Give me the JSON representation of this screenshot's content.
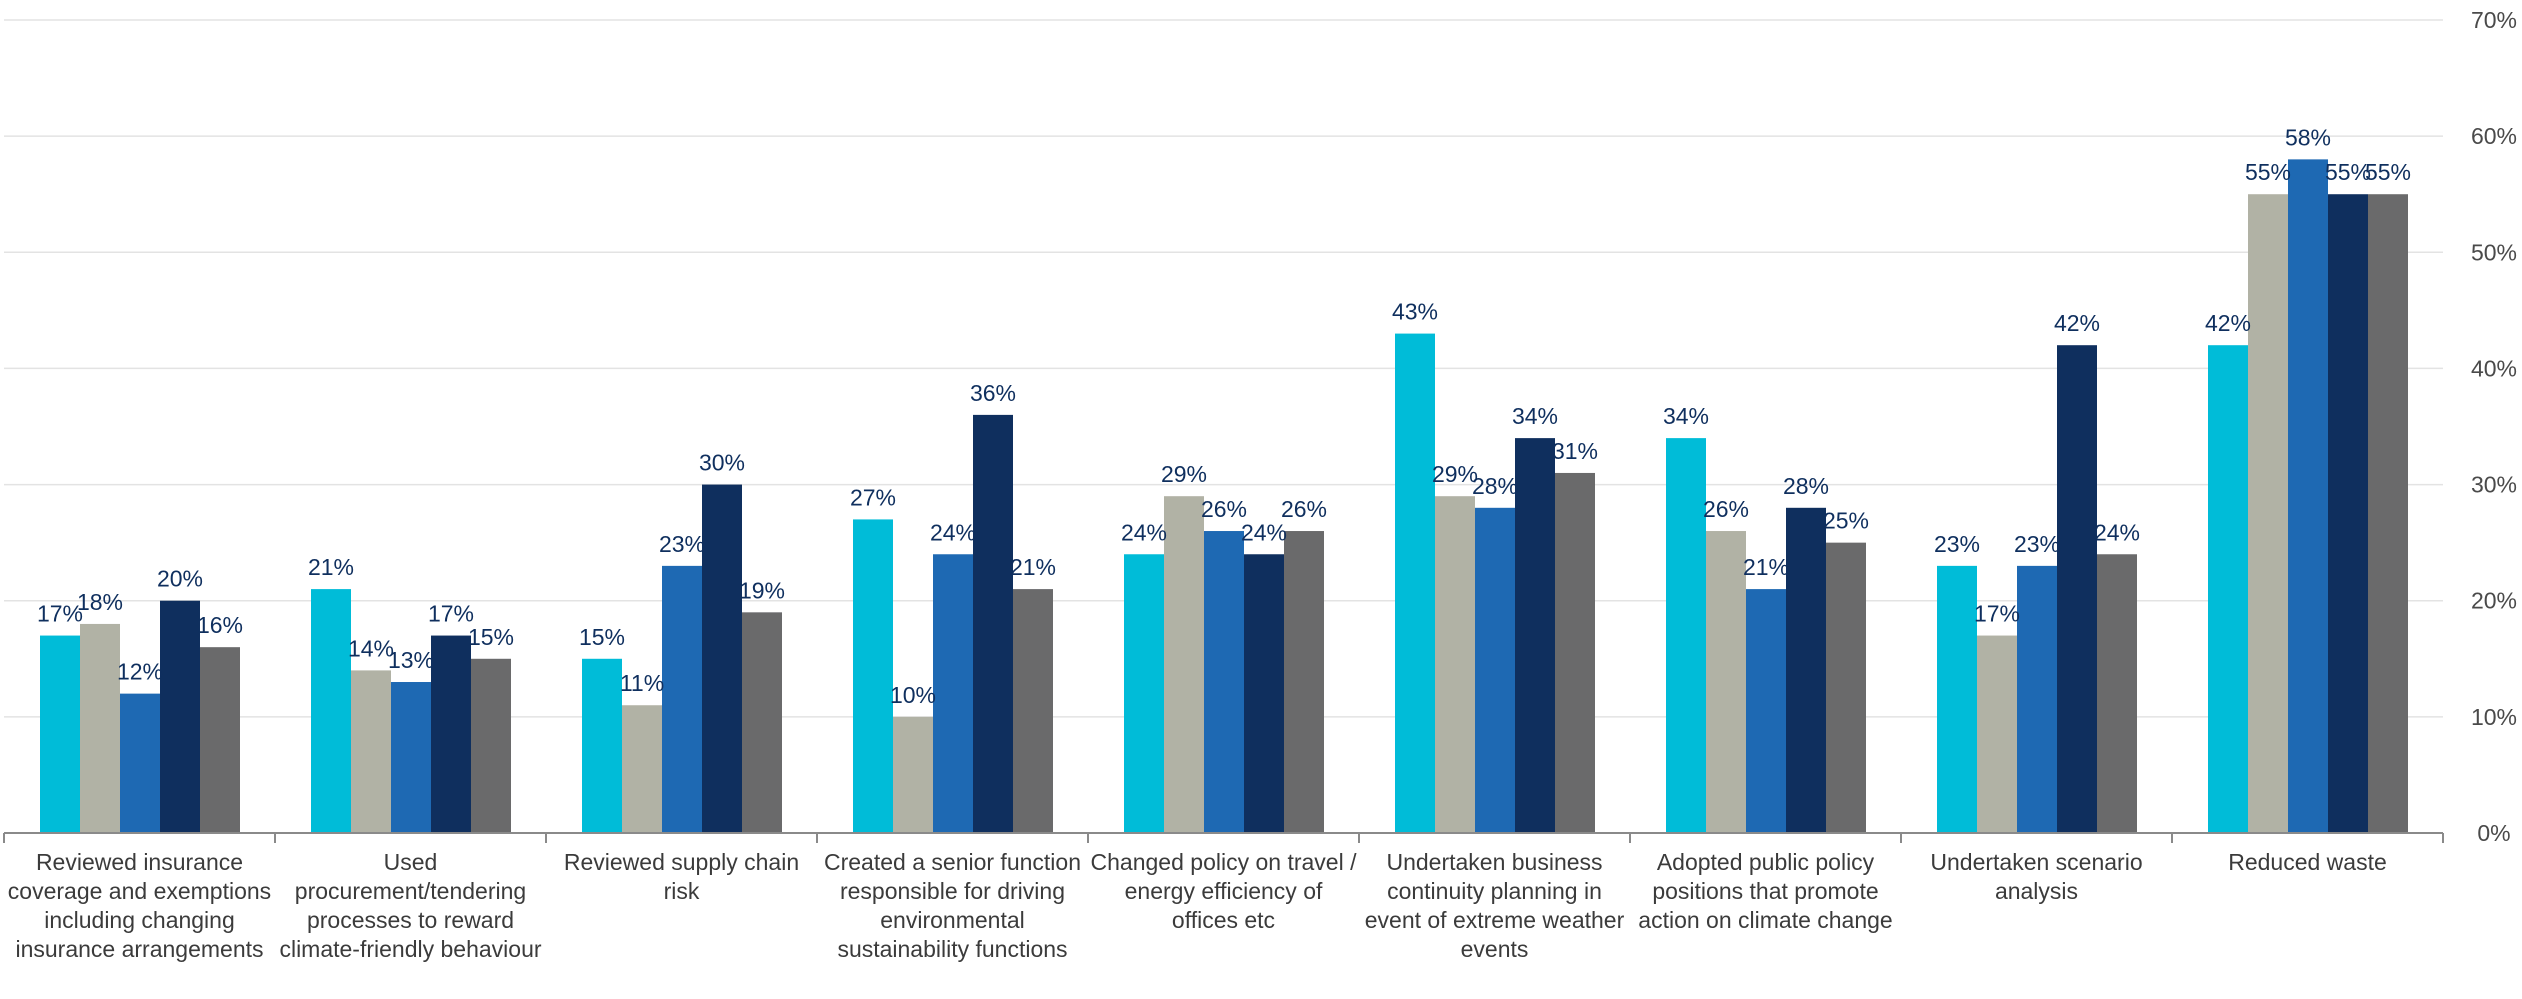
{
  "chart_data": {
    "type": "bar",
    "title": "",
    "xlabel": "",
    "ylabel": "",
    "ylim": [
      0,
      70
    ],
    "yticks": [
      0,
      10,
      20,
      30,
      40,
      50,
      60,
      70
    ],
    "ytick_labels": [
      "0%",
      "10%",
      "20%",
      "30%",
      "40%",
      "50%",
      "60%",
      "70%"
    ],
    "grid": true,
    "legend": "none",
    "categories": [
      "Reviewed insurance coverage and exemptions including changing insurance arrangements",
      "Used procurement/tendering processes to reward climate-friendly behaviour",
      "Reviewed supply chain risk",
      "Created a senior function responsible for driving environmental sustainability functions",
      "Changed policy on travel / energy efficiency of offices etc",
      "Undertaken business continuity planning in event of extreme weather events",
      "Adopted public policy positions that promote action on climate change",
      "Undertaken scenario analysis",
      "Reduced waste"
    ],
    "series": [
      {
        "color": "#00bcd8",
        "values": [
          17,
          21,
          15,
          27,
          24,
          43,
          34,
          23,
          42
        ],
        "labels": [
          "17%",
          "21%",
          "15%",
          "27%",
          "24%",
          "43%",
          "34%",
          "23%",
          "42%"
        ]
      },
      {
        "color": "#b1b2a5",
        "values": [
          18,
          14,
          11,
          10,
          29,
          29,
          26,
          17,
          55
        ],
        "labels": [
          "18%",
          "14%",
          "11%",
          "10%",
          "29%",
          "29%",
          "26%",
          "17%",
          "55%"
        ]
      },
      {
        "color": "#1e69b3",
        "values": [
          12,
          13,
          23,
          24,
          26,
          28,
          21,
          23,
          58
        ],
        "labels": [
          "12%",
          "13%",
          "23%",
          "24%",
          "26%",
          "28%",
          "21%",
          "23%",
          "58%"
        ]
      },
      {
        "color": "#0f2f5e",
        "values": [
          20,
          17,
          30,
          36,
          24,
          34,
          28,
          42,
          55
        ],
        "labels": [
          "20%",
          "17%",
          "30%",
          "36%",
          "24%",
          "34%",
          "28%",
          "42%",
          "55%"
        ]
      },
      {
        "color": "#6a6a6b",
        "values": [
          16,
          15,
          19,
          21,
          26,
          31,
          25,
          24,
          55
        ],
        "labels": [
          "16%",
          "15%",
          "19%",
          "21%",
          "26%",
          "31%",
          "25%",
          "24%",
          "55%"
        ]
      }
    ],
    "colors": {
      "grid": "#e3e3e3",
      "axis": "#8a8a8a",
      "value_label": "#0f2f5e",
      "tick_label": "#4a4a4a"
    }
  }
}
